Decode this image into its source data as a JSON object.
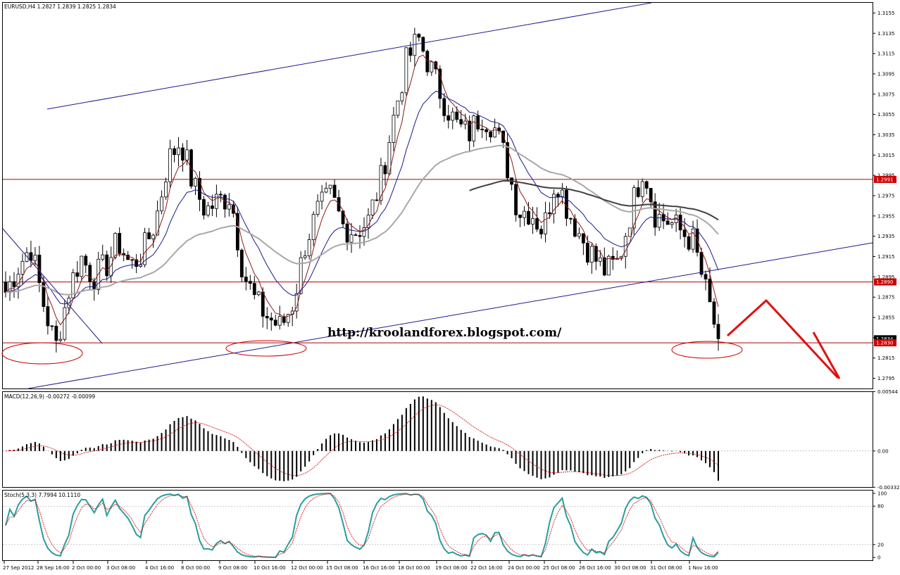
{
  "url_text": "http://kroolandforex.blogspot.com/",
  "main_panel": {
    "title": "EURUSD,H4  1.2827 1.2839 1.2825 1.2834",
    "ymin": 1.2785,
    "ymax": 1.3165,
    "y_ticks": [
      "1.3155",
      "1.3135",
      "1.3115",
      "1.3095",
      "1.3075",
      "1.3055",
      "1.3035",
      "1.3015",
      "1.2995",
      "1.2975",
      "1.2955",
      "1.2935",
      "1.2915",
      "1.2895",
      "1.2875",
      "1.2855",
      "1.2835",
      "1.2815",
      "1.2795"
    ],
    "price_labels": [
      {
        "text": "1.2991",
        "value": 1.2991,
        "color": "#cc0000"
      },
      {
        "text": "1.2890",
        "value": 1.289,
        "color": "#cc0000"
      },
      {
        "text": "1.2834",
        "value": 1.2834,
        "color": "#000000"
      },
      {
        "text": "1.2830",
        "value": 1.283,
        "color": "#cc0000"
      }
    ],
    "horizontal_lines": [
      1.2991,
      1.289,
      1.283
    ],
    "line_color_horizontal": "#b00000"
  },
  "macd_panel": {
    "title": "MACD(12,26,9) -0.00272 -0.00099",
    "y_ticks": [
      "0.00544",
      "0.00",
      "-0.00332"
    ],
    "ymin": -0.0033,
    "ymax": 0.0054
  },
  "stoch_panel": {
    "title": "Stoch(5,3,3) 7.7994 10.1110",
    "y_ticks": [
      "100",
      "80",
      "20",
      "0"
    ],
    "ymin": 0,
    "ymax": 100
  },
  "x_ticks": [
    "27 Sep 2012",
    "28 Sep 16:00",
    "2 Oct 00:00",
    "3 Oct 08:00",
    "4 Oct 16:00",
    "8 Oct 00:00",
    "9 Oct 08:00",
    "10 Oct 16:00",
    "12 Oct 00:00",
    "15 Oct 08:00",
    "16 Oct 16:00",
    "18 Oct 00:00",
    "19 Oct 08:00",
    "22 Oct 16:00",
    "24 Oct 00:00",
    "25 Oct 08:00",
    "26 Oct 16:00",
    "30 Oct 08:00",
    "31 Oct 08:00",
    "1 Nov 16:00"
  ],
  "colors": {
    "candle": "#000000",
    "ema_fast": "#8b1a1a",
    "ema_slow": "#1a1a8b",
    "sma_long": "#a8a8a8",
    "sma_longer": "#404040",
    "channel": "#1c1c8c",
    "ellipse": "#cc0000",
    "arrow": "#e01010",
    "stoch_main": "#2a9d9d",
    "stoch_signal": "#cc0000"
  },
  "chart_data": {
    "type": "candlestick",
    "symbol": "EURUSD",
    "timeframe": "H4",
    "x_tick_labels": [
      "27 Sep 2012",
      "28 Sep 16:00",
      "2 Oct 00:00",
      "3 Oct 08:00",
      "4 Oct 16:00",
      "8 Oct 00:00",
      "9 Oct 08:00",
      "10 Oct 16:00",
      "12 Oct 00:00",
      "15 Oct 08:00",
      "16 Oct 16:00",
      "18 Oct 00:00",
      "19 Oct 08:00",
      "22 Oct 16:00",
      "24 Oct 00:00",
      "25 Oct 08:00",
      "26 Oct 16:00",
      "30 Oct 08:00",
      "31 Oct 08:00",
      "1 Nov 16:00"
    ],
    "close_path": [
      1.288,
      1.2905,
      1.2925,
      1.287,
      1.2825,
      1.288,
      1.2915,
      1.2895,
      1.2905,
      1.293,
      1.2905,
      1.292,
      1.295,
      1.301,
      1.303,
      1.2985,
      1.296,
      1.297,
      1.2975,
      1.29,
      1.287,
      1.2855,
      1.2845,
      1.287,
      1.293,
      1.296,
      1.2975,
      1.2945,
      1.294,
      1.295,
      1.299,
      1.305,
      1.3105,
      1.313,
      1.31,
      1.307,
      1.3045,
      1.3035,
      1.3055,
      1.3045,
      1.301,
      1.296,
      1.296,
      1.294,
      1.2995,
      1.296,
      1.2935,
      1.2915,
      1.29,
      1.291,
      1.296,
      1.3005,
      1.2955,
      1.295,
      1.294,
      1.293,
      1.288,
      1.2834
    ],
    "ylim": [
      1.2785,
      1.3165
    ],
    "macd": {
      "name": "MACD(12,26,9)",
      "values_last": [
        -0.00272,
        -0.00099
      ]
    },
    "stoch": {
      "name": "Stoch(5,3,3)",
      "values_last": [
        7.7994,
        10.111
      ]
    }
  }
}
